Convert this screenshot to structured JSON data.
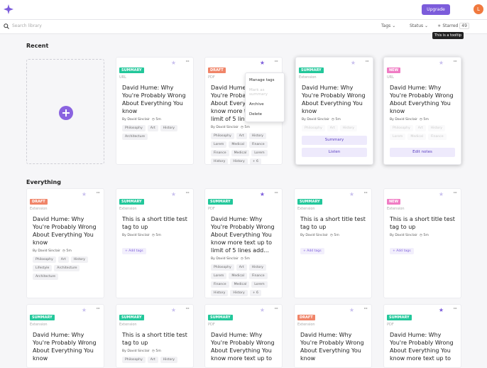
{
  "header": {
    "upgrade": "Upgrade",
    "avatar": "L"
  },
  "toolbar": {
    "search_placeholder": "Search library",
    "tags": "Tags",
    "status": "Status",
    "starred": "Starred",
    "starred_count": "49",
    "tooltip": "This is a tooltip"
  },
  "sections": [
    {
      "title": "Recent",
      "cards": [
        {
          "badge": "SUMMARY",
          "source": "URL",
          "starred": false,
          "title": "David Hume: Why You're Probably Wrong About Everything You know",
          "author": "By David Sinclair",
          "time": "5m",
          "tags": [
            "Philosophy",
            "Art",
            "History",
            "Architecture"
          ]
        },
        {
          "badge": "DRAFT",
          "source": "PDF",
          "starred": true,
          "title": "David Hume: Why You're Probably Wrong About Everything You know more text up to limit of 5 lines",
          "author": "By David Sinclair",
          "time": "5m",
          "tags": [
            "Philosophy",
            "Art",
            "History",
            "Lorem",
            "Medical",
            "Finance",
            "Finance",
            "Medical",
            "Lorem",
            "History",
            "History",
            "+ 6"
          ],
          "menu": [
            "Manage tags",
            "Mark as summary",
            "Archive",
            "Delete"
          ]
        },
        {
          "badge": "SUMMARY",
          "source": "Extension",
          "starred": false,
          "title": "David Hume: Why You're Probably Wrong About Everything You know",
          "author": "By David Sinclair",
          "time": "5m",
          "tags": [
            "Philosophy",
            "Art",
            "History"
          ],
          "actions": [
            "Summary",
            "Listen"
          ]
        },
        {
          "badge": "NEW",
          "source": "URL",
          "starred": false,
          "title": "David Hume: Why You're Probably Wrong About Everything You know",
          "author": "By David Sinclair",
          "time": "5m",
          "tags": [
            "Philosophy",
            "Art",
            "History",
            "Lorem",
            "Medical",
            "Finance"
          ],
          "actions": [
            "Edit notes"
          ]
        }
      ]
    },
    {
      "title": "Everything",
      "cards": [
        {
          "badge": "DRAFT",
          "source": "Extension",
          "starred": false,
          "title": "David Hume: Why You're Probably Wrong About Everything You know",
          "author": "By David Sinclair",
          "time": "5m",
          "tags": [
            "Philosophy",
            "Art",
            "History",
            "Lifestyle",
            "Architecture",
            "Architecture"
          ]
        },
        {
          "badge": "SUMMARY",
          "source": "Extension",
          "starred": false,
          "title": "This is a short title test tag to up",
          "author": "By David Sinclair",
          "time": "5m",
          "add_tags": "+ Add tags"
        },
        {
          "badge": "SUMMARY",
          "source": "PDF",
          "starred": true,
          "title": "David Hume: Why You're Probably Wrong About Everything You know more text up to limit of 5 lines add...",
          "author": "By David Sinclair",
          "time": "5m",
          "tags": [
            "Philosophy",
            "Art",
            "History",
            "Lorem",
            "Medical",
            "Finance",
            "Finance",
            "Medical",
            "Lorem",
            "History",
            "History",
            "+ 6"
          ]
        },
        {
          "badge": "SUMMARY",
          "source": "Extension",
          "starred": false,
          "title": "This is a short title test tag to up",
          "author": "By David Sinclair",
          "time": "5m",
          "add_tags": "+ Add tags"
        },
        {
          "badge": "NEW",
          "source": "Extension",
          "starred": false,
          "title": "This is a short title test tag to up",
          "author": "By David Sinclair",
          "time": "5m",
          "add_tags": "+ Add tags"
        },
        {
          "badge": "SUMMARY",
          "source": "Extension",
          "starred": false,
          "title": "David Hume: Why You're Probably Wrong About Everything You know"
        },
        {
          "badge": "SUMMARY",
          "source": "Extension",
          "starred": false,
          "title": "This is a short title test tag to up",
          "author": "By David Sinclair",
          "time": "5m",
          "tags": [
            "Philosophy",
            "Art",
            "History"
          ]
        },
        {
          "badge": "SUMMARY",
          "source": "PDF",
          "starred": false,
          "title": "David Hume: Why You're Probably Wrong About Everything You know more text up to"
        },
        {
          "badge": "DRAFT",
          "source": "Extension",
          "starred": false,
          "title": "David Hume: Why You're Probably Wrong About Everything You know"
        },
        {
          "badge": "SUMMARY",
          "source": "PDF",
          "starred": true,
          "title": "David Hume: Why You're Probably Wrong About Everything You know more text up to"
        }
      ]
    }
  ]
}
